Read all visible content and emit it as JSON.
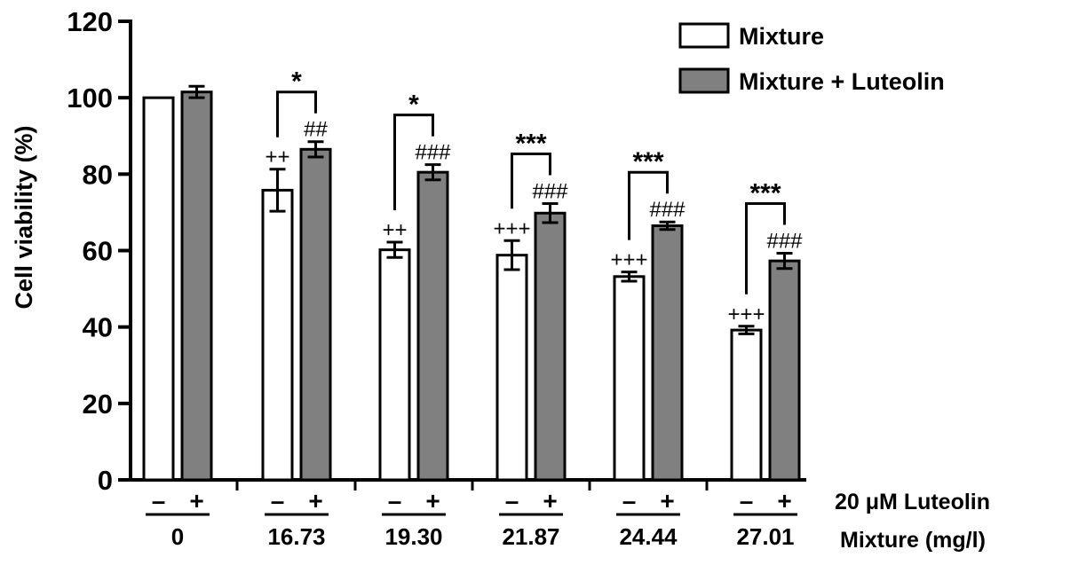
{
  "chart_data": {
    "type": "bar",
    "categories": [
      "0",
      "16.73",
      "19.30",
      "21.87",
      "24.44",
      "27.01"
    ],
    "series": [
      {
        "name": "Mixture",
        "color": "#ffffff",
        "values": [
          100,
          75.8,
          60.2,
          58.8,
          53.2,
          39.2
        ],
        "errors": [
          0,
          5.5,
          2.0,
          3.8,
          1.2,
          1.0
        ],
        "annotations": [
          "",
          "++",
          "++",
          "+++",
          "+++",
          "+++"
        ]
      },
      {
        "name": "Mixture + Luteolin",
        "color": "#808080",
        "values": [
          101.5,
          86.5,
          80.5,
          69.8,
          66.5,
          57.3
        ],
        "errors": [
          1.5,
          2.0,
          2.0,
          2.5,
          1.0,
          2.0
        ],
        "annotations": [
          "",
          "##",
          "###",
          "###",
          "###",
          "###"
        ]
      }
    ],
    "significance": [
      "",
      "*",
      "*",
      "***",
      "***",
      "***"
    ],
    "luteolin_signs": [
      "–",
      "+"
    ],
    "row_labels": {
      "luteolin": "20 μM Luteolin",
      "mixture": "Mixture (mg/l)"
    },
    "ylabel": "Cell viability (%)",
    "xlabel": "",
    "ylim": [
      0,
      120
    ],
    "yticks": [
      0,
      20,
      40,
      60,
      80,
      100,
      120
    ],
    "legend_position": "top-right",
    "grid": false
  }
}
